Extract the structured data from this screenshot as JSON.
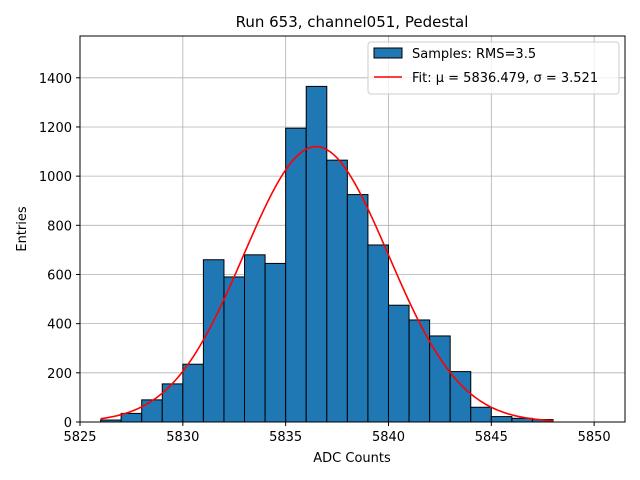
{
  "chart_data": {
    "type": "bar",
    "title": "Run 653, channel051, Pedestal",
    "xlabel": "ADC Counts",
    "ylabel": "Entries",
    "xlim": [
      5825,
      5851.5
    ],
    "ylim": [
      0,
      1570
    ],
    "xticks": [
      5825,
      5830,
      5835,
      5840,
      5845,
      5850
    ],
    "yticks": [
      0,
      200,
      400,
      600,
      800,
      1000,
      1200,
      1400
    ],
    "grid": true,
    "legend_position": "top-right",
    "histogram": {
      "name": "Samples: RMS=3.5",
      "color": "#1f77b4",
      "edge_color": "#000000",
      "bin_edges": [
        5826,
        5827,
        5828,
        5829,
        5830,
        5831,
        5832,
        5833,
        5834,
        5835,
        5836,
        5837,
        5838,
        5839,
        5840,
        5841,
        5842,
        5843,
        5844,
        5845,
        5846,
        5847,
        5848
      ],
      "counts": [
        8,
        35,
        90,
        155,
        235,
        660,
        590,
        680,
        645,
        1195,
        1365,
        1065,
        925,
        720,
        475,
        415,
        350,
        205,
        60,
        22,
        15,
        10
      ]
    },
    "fit": {
      "name": "Fit: μ = 5836.479, σ = 3.521",
      "color": "#ff0000",
      "mu": 5836.479,
      "sigma": 3.521,
      "amplitude": 1120,
      "x_range": [
        5826,
        5848
      ]
    }
  }
}
